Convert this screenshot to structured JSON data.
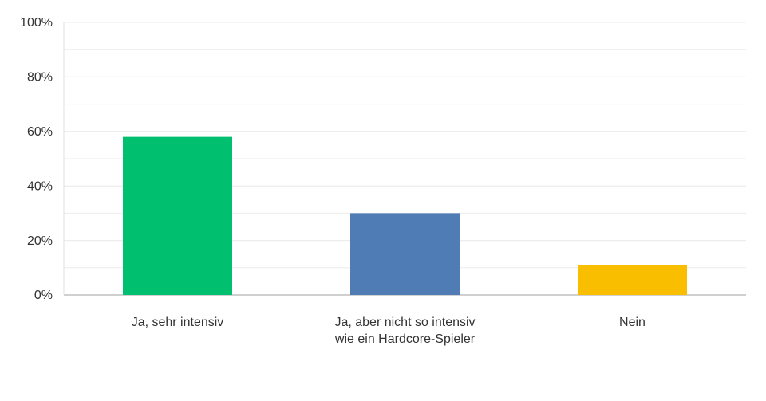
{
  "chart_data": {
    "type": "bar",
    "categories": [
      "Ja, sehr intensiv",
      "Ja, aber nicht so intensiv wie ein Hardcore-Spieler",
      "Nein"
    ],
    "values": [
      58,
      30,
      11
    ],
    "colors": [
      "#00bf6f",
      "#507cb6",
      "#f9be00"
    ],
    "ylim": [
      0,
      100
    ],
    "yticks": [
      {
        "value": 0,
        "label": "0%"
      },
      {
        "value": 20,
        "label": "20%"
      },
      {
        "value": 40,
        "label": "40%"
      },
      {
        "value": 60,
        "label": "60%"
      },
      {
        "value": 80,
        "label": "80%"
      },
      {
        "value": 100,
        "label": "100%"
      }
    ],
    "grid_lines": [
      10,
      20,
      30,
      40,
      50,
      60,
      70,
      80,
      90
    ],
    "grid": true
  }
}
